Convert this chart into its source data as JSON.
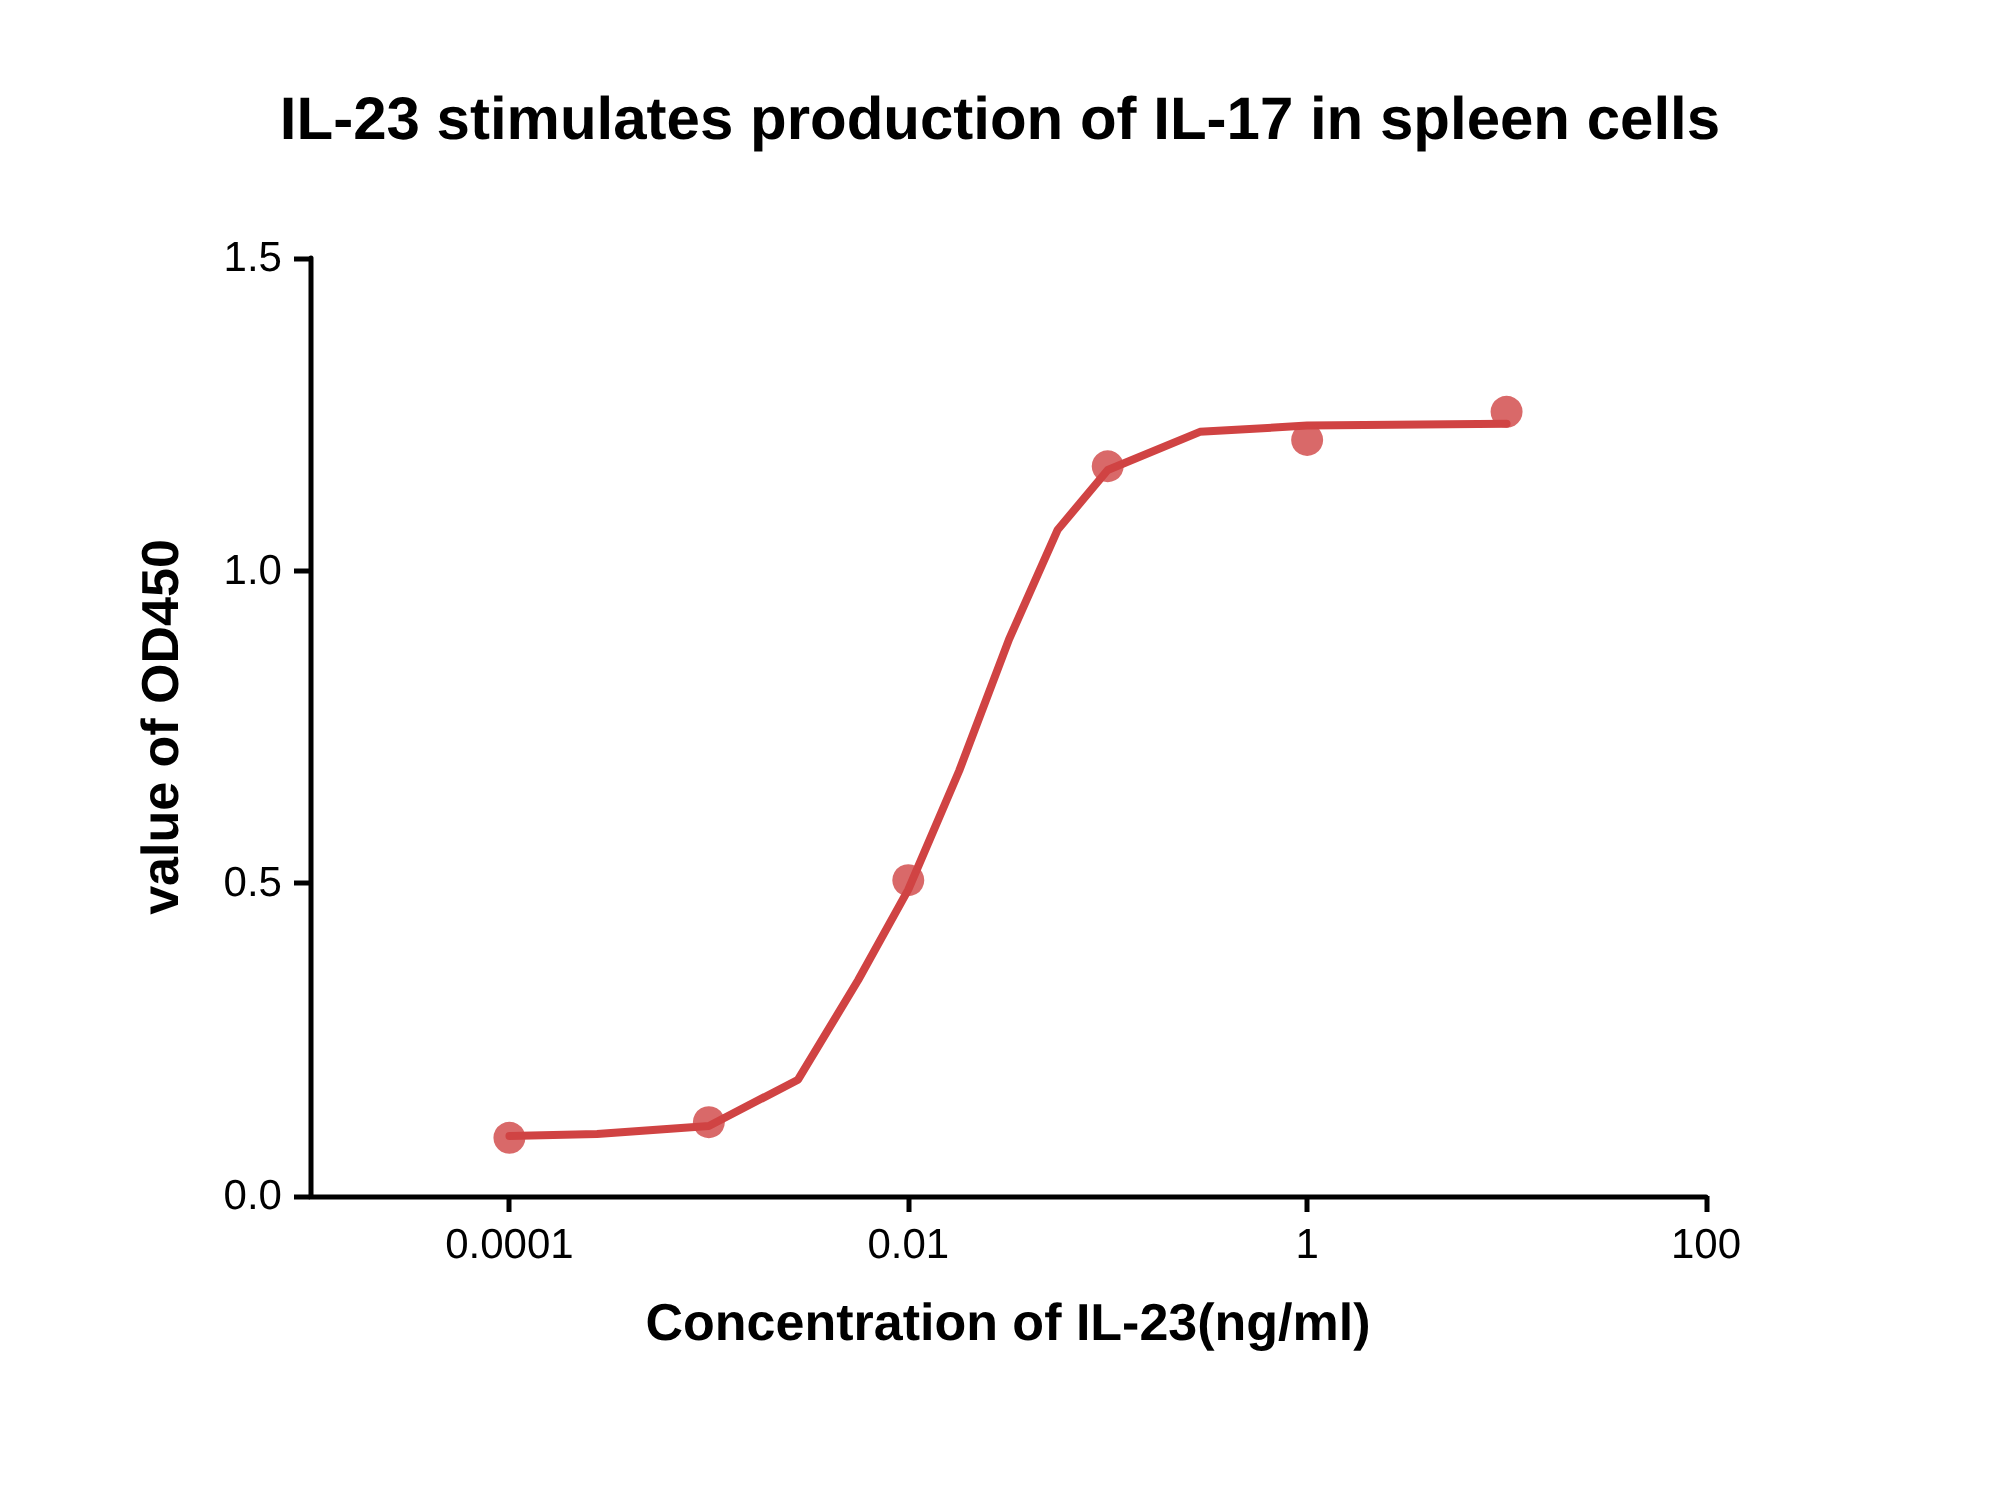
{
  "chart_data": {
    "type": "scatter",
    "title": "IL-23 stimulates production of IL-17 in spleen cells",
    "xlabel": "Concentration of IL-23(ng/ml)",
    "ylabel": "value of OD450",
    "log": "x",
    "grid": false,
    "marker": "circle",
    "xlim": [
      1e-05,
      100
    ],
    "xticks": [
      0.0001,
      0.01,
      1,
      100
    ],
    "ylim": [
      0,
      1.5
    ],
    "yticks": [
      {
        "value": 0,
        "label": "0.0"
      },
      {
        "value": 0.5,
        "label": "0.5"
      },
      {
        "value": 1,
        "label": "1.0"
      },
      {
        "value": 1.5,
        "label": "1.5"
      }
    ],
    "series": [
      {
        "color": "#d04343",
        "x": [
          0.0001,
          0.001,
          0.01,
          0.1,
          1,
          10
        ],
        "values": [
          0.093,
          0.118,
          0.505,
          1.167,
          1.209,
          1.254
        ]
      },
      {
        "type": "line",
        "color": "#d04343",
        "marker": "none",
        "line_style": "solid",
        "x": [
          0.0001,
          0.000275,
          0.001,
          0.0028,
          0.0056,
          0.01,
          0.018,
          0.032,
          0.056,
          0.1,
          0.29,
          1,
          10
        ],
        "values": [
          0.096,
          0.099,
          0.112,
          0.186,
          0.345,
          0.49,
          0.68,
          0.89,
          1.065,
          1.161,
          1.222,
          1.232,
          1.235
        ]
      }
    ]
  }
}
